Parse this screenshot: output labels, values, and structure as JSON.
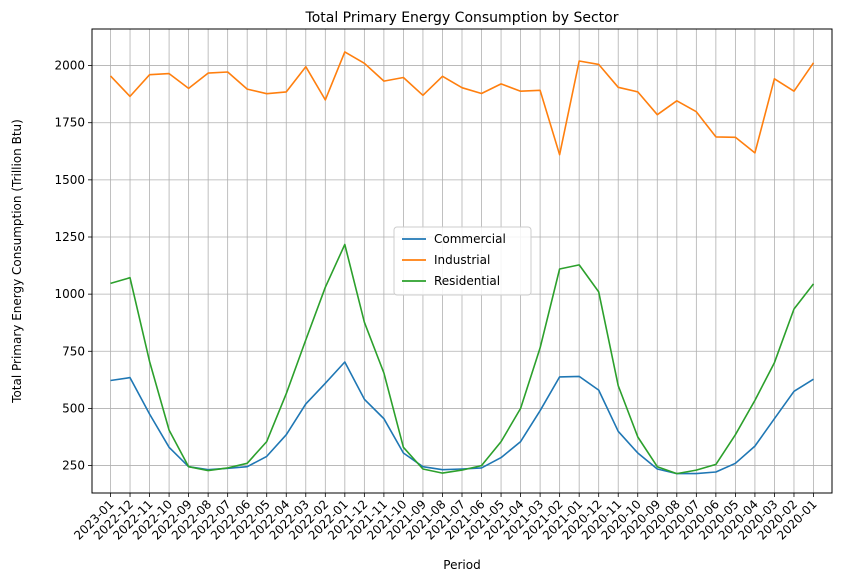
{
  "chart_data": {
    "type": "line",
    "title": "Total Primary Energy Consumption by Sector",
    "xlabel": "Period",
    "ylabel": "Total Primary Energy Consumption (Trillion Btu)",
    "ylim": [
      130,
      2160
    ],
    "yticks": [
      250,
      500,
      750,
      1000,
      1250,
      1500,
      1750,
      2000
    ],
    "grid": true,
    "legend_position": "center",
    "x": [
      "2023-01",
      "2022-12",
      "2022-11",
      "2022-10",
      "2022-09",
      "2022-08",
      "2022-07",
      "2022-06",
      "2022-05",
      "2022-04",
      "2022-03",
      "2022-02",
      "2022-01",
      "2021-12",
      "2021-11",
      "2021-10",
      "2021-09",
      "2021-08",
      "2021-07",
      "2021-06",
      "2021-05",
      "2021-04",
      "2021-03",
      "2021-02",
      "2021-01",
      "2020-12",
      "2020-11",
      "2020-10",
      "2020-09",
      "2020-08",
      "2020-07",
      "2020-06",
      "2020-05",
      "2020-04",
      "2020-03",
      "2020-02",
      "2020-01"
    ],
    "series": [
      {
        "name": "Commercial",
        "color": "#1f77b4",
        "values": [
          622,
          635,
          475,
          330,
          245,
          232,
          238,
          245,
          290,
          385,
          520,
          610,
          703,
          540,
          455,
          305,
          245,
          232,
          235,
          240,
          285,
          355,
          490,
          638,
          640,
          580,
          400,
          305,
          235,
          215,
          215,
          222,
          260,
          335,
          455,
          575,
          628
        ]
      },
      {
        "name": "Industrial",
        "color": "#ff7f0e",
        "values": [
          1955,
          1865,
          1960,
          1965,
          1900,
          1967,
          1972,
          1897,
          1877,
          1885,
          1995,
          1850,
          2060,
          2010,
          1932,
          1948,
          1870,
          1953,
          1903,
          1878,
          1920,
          1888,
          1892,
          1610,
          2020,
          2005,
          1905,
          1885,
          1785,
          1846,
          1798,
          1688,
          1686,
          1618,
          1942,
          1888,
          2012
        ]
      },
      {
        "name": "Residential",
        "color": "#2ca02c",
        "values": [
          1047,
          1072,
          705,
          405,
          245,
          228,
          240,
          260,
          355,
          565,
          800,
          1030,
          1217,
          877,
          655,
          330,
          235,
          217,
          230,
          250,
          355,
          500,
          765,
          1110,
          1128,
          1010,
          600,
          375,
          245,
          215,
          230,
          255,
          385,
          535,
          700,
          935,
          1045
        ]
      }
    ]
  }
}
